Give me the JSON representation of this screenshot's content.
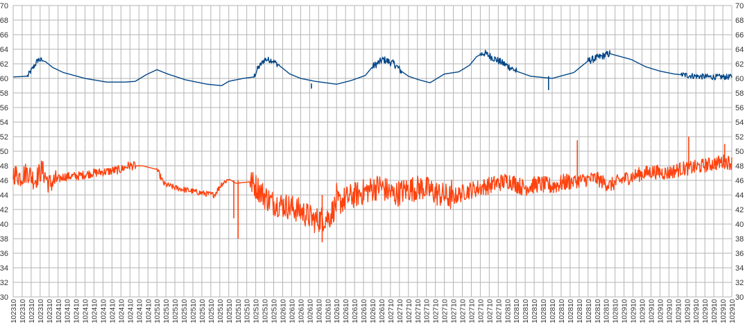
{
  "chart_data": {
    "type": "line",
    "title": "",
    "xlabel": "",
    "ylabel": "",
    "ylim": [
      30,
      70
    ],
    "y_ticks": [
      30,
      32,
      34,
      36,
      38,
      40,
      42,
      44,
      46,
      48,
      50,
      52,
      54,
      56,
      58,
      60,
      62,
      64,
      66,
      68,
      70
    ],
    "y_axis_sides": "left-and-right",
    "grid": true,
    "legend": "none",
    "x_tick_labels": [
      "102310",
      "102310",
      "102310",
      "102310",
      "102310",
      "102410",
      "102410",
      "102410",
      "102410",
      "102410",
      "102410",
      "102410",
      "102410",
      "102410",
      "102410",
      "102410",
      "102510",
      "102510",
      "102510",
      "102510",
      "102510",
      "102510",
      "102510",
      "102510",
      "102510",
      "102510",
      "102510",
      "102510",
      "102510",
      "102510",
      "102610",
      "102610",
      "102610",
      "102610",
      "102610",
      "102610",
      "102610",
      "102610",
      "102610",
      "102610",
      "102610",
      "102610",
      "102710",
      "102710",
      "102710",
      "102710",
      "102710",
      "102710",
      "102710",
      "102710",
      "102710",
      "102710",
      "102710",
      "102710",
      "102710",
      "102810",
      "102810",
      "102810",
      "102810",
      "102810",
      "102810",
      "102810",
      "102810",
      "102810",
      "102810",
      "102810",
      "102810",
      "102810",
      "102910",
      "102910",
      "102910",
      "102910",
      "102910",
      "102910",
      "102910",
      "102910",
      "102910",
      "102910",
      "102910",
      "102910",
      "102910"
    ],
    "x_label_orientation": "vertical",
    "series": [
      {
        "color": "#004586",
        "style": "line",
        "x": [
          0,
          0.02,
          0.028,
          0.035,
          0.045,
          0.055,
          0.07,
          0.1,
          0.13,
          0.157,
          0.17,
          0.185,
          0.2,
          0.215,
          0.24,
          0.27,
          0.29,
          0.3,
          0.32,
          0.335,
          0.34,
          0.35,
          0.36,
          0.375,
          0.385,
          0.4,
          0.42,
          0.45,
          0.47,
          0.49,
          0.5,
          0.515,
          0.53,
          0.54,
          0.55,
          0.565,
          0.58,
          0.6,
          0.62,
          0.635,
          0.645,
          0.655,
          0.67,
          0.69,
          0.7,
          0.72,
          0.75,
          0.78,
          0.79,
          0.8,
          0.83,
          0.86,
          0.88,
          0.9,
          0.92,
          0.95,
          0.97,
          1.0
        ],
        "y": [
          60.2,
          60.3,
          61.5,
          62.6,
          62.3,
          61.5,
          60.8,
          60.0,
          59.5,
          59.5,
          59.6,
          60.5,
          61.2,
          60.6,
          59.8,
          59.2,
          59.0,
          59.6,
          60.0,
          60.2,
          61.3,
          62.6,
          62.5,
          61.4,
          60.6,
          60.0,
          59.6,
          59.2,
          59.7,
          60.4,
          61.6,
          62.6,
          62.0,
          61.0,
          60.3,
          59.8,
          59.4,
          60.6,
          60.9,
          61.8,
          63.0,
          63.5,
          62.7,
          61.6,
          61.0,
          60.3,
          60.0,
          60.8,
          61.6,
          62.4,
          63.4,
          62.6,
          61.6,
          61.0,
          60.6,
          60.3,
          60.2,
          60.2
        ]
      },
      {
        "color": "#ff420e",
        "style": "line",
        "x": [
          0,
          0.01,
          0.02,
          0.03,
          0.04,
          0.05,
          0.07,
          0.09,
          0.11,
          0.13,
          0.15,
          0.16,
          0.18,
          0.2,
          0.21,
          0.225,
          0.24,
          0.26,
          0.28,
          0.29,
          0.3,
          0.31,
          0.33,
          0.34,
          0.35,
          0.36,
          0.38,
          0.4,
          0.42,
          0.44,
          0.45,
          0.47,
          0.49,
          0.51,
          0.53,
          0.55,
          0.57,
          0.59,
          0.61,
          0.63,
          0.65,
          0.67,
          0.69,
          0.71,
          0.73,
          0.75,
          0.77,
          0.79,
          0.81,
          0.83,
          0.85,
          0.87,
          0.89,
          0.91,
          0.93,
          0.95,
          0.97,
          0.99,
          1.0
        ],
        "y": [
          47.0,
          46.5,
          47.2,
          46.0,
          47.5,
          45.5,
          46.5,
          46.6,
          47.0,
          47.2,
          47.5,
          48.0,
          48.0,
          47.5,
          45.5,
          45.0,
          44.7,
          44.3,
          44.0,
          45.5,
          46.2,
          45.6,
          45.8,
          45.0,
          43.8,
          43.0,
          42.5,
          41.8,
          40.5,
          41.0,
          42.8,
          43.8,
          44.5,
          45.2,
          44.0,
          44.8,
          45.0,
          44.2,
          43.6,
          44.5,
          45.0,
          45.5,
          46.0,
          45.0,
          45.5,
          45.2,
          45.8,
          46.0,
          46.3,
          45.3,
          46.2,
          46.8,
          47.2,
          47.0,
          47.6,
          47.8,
          48.2,
          48.6,
          48.4
        ]
      }
    ],
    "spikes": [
      {
        "series": 1,
        "at": 0.307,
        "from": 46.0,
        "to": 40.8
      },
      {
        "series": 1,
        "at": 0.313,
        "from": 46.0,
        "to": 38.0
      },
      {
        "series": 1,
        "at": 0.43,
        "from": 44.0,
        "to": 37.5
      },
      {
        "series": 1,
        "at": 0.785,
        "from": 46.5,
        "to": 51.5
      },
      {
        "series": 1,
        "at": 0.94,
        "from": 48.5,
        "to": 52.0
      },
      {
        "series": 1,
        "at": 0.99,
        "from": 48.5,
        "to": 51.0
      },
      {
        "series": 0,
        "at": 0.745,
        "from": 60.3,
        "to": 58.4
      },
      {
        "series": 0,
        "at": 0.415,
        "from": 59.3,
        "to": 58.6
      }
    ],
    "noise": [
      {
        "series": 1,
        "from": 0.0,
        "to": 0.06,
        "amp": 1.5
      },
      {
        "series": 1,
        "from": 0.06,
        "to": 0.17,
        "amp": 0.6
      },
      {
        "series": 1,
        "from": 0.2,
        "to": 0.3,
        "amp": 0.4
      },
      {
        "series": 1,
        "from": 0.33,
        "to": 0.45,
        "amp": 1.8
      },
      {
        "series": 1,
        "from": 0.45,
        "to": 0.61,
        "amp": 1.8
      },
      {
        "series": 1,
        "from": 0.61,
        "to": 0.78,
        "amp": 1.2
      },
      {
        "series": 1,
        "from": 0.78,
        "to": 1.0,
        "amp": 1.0
      },
      {
        "series": 0,
        "from": 0.02,
        "to": 0.04,
        "amp": 0.4
      },
      {
        "series": 0,
        "from": 0.335,
        "to": 0.37,
        "amp": 0.4
      },
      {
        "series": 0,
        "from": 0.5,
        "to": 0.54,
        "amp": 0.5
      },
      {
        "series": 0,
        "from": 0.65,
        "to": 0.7,
        "amp": 0.5
      },
      {
        "series": 0,
        "from": 0.8,
        "to": 0.83,
        "amp": 0.5
      },
      {
        "series": 0,
        "from": 0.93,
        "to": 1.0,
        "amp": 0.4
      }
    ]
  }
}
